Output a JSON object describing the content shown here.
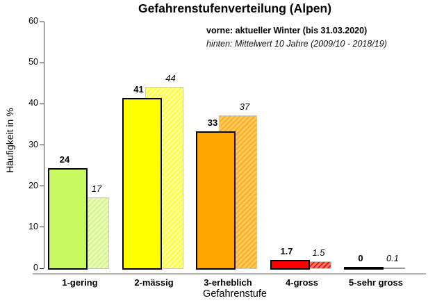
{
  "title": "Gefahrenstufenverteilung (Alpen)",
  "legend": {
    "front": "vorne: aktueller Winter (bis 31.03.2020)",
    "back": "hinten: Mittelwert 10 Jahre (2009/10 - 2018/19)"
  },
  "chart_data": {
    "type": "bar",
    "title": "Gefahrenstufenverteilung (Alpen)",
    "categories": [
      "1-gering",
      "2-mässig",
      "3-erheblich",
      "4-gross",
      "5-sehr gross"
    ],
    "series": [
      {
        "name": "vorne: aktueller Winter (bis 31.03.2020)",
        "position": "front",
        "style": "solid",
        "values": [
          24,
          41,
          33,
          1.7,
          0
        ]
      },
      {
        "name": "hinten: Mittelwert 10 Jahre (2009/10 - 2018/19)",
        "position": "back",
        "style": "hatched",
        "values": [
          17,
          44,
          37,
          1.5,
          0.1
        ]
      }
    ],
    "xlabel": "Gefahrenstufe",
    "ylabel": "Häufigkeit in %",
    "ylim": [
      0,
      60
    ],
    "yticks": [
      0,
      10,
      20,
      30,
      40,
      50,
      60
    ],
    "grid": false,
    "legend_position": "top-right",
    "colors": {
      "front": [
        "#c6fa5f",
        "#ffff00",
        "#ffa500",
        "#ff0000",
        "#000000"
      ],
      "back_base": [
        "#e9fcb7",
        "#ffff9e",
        "#ffca55",
        "#ff7766",
        "#999999"
      ],
      "back_stripe": [
        "#d2f48a",
        "#ffff2b",
        "#fca929",
        "#ee1111",
        "#999999"
      ],
      "front_border": "#000000",
      "back_border": "#c8c8c8",
      "x_axis_line": "#b0b0b0"
    }
  }
}
